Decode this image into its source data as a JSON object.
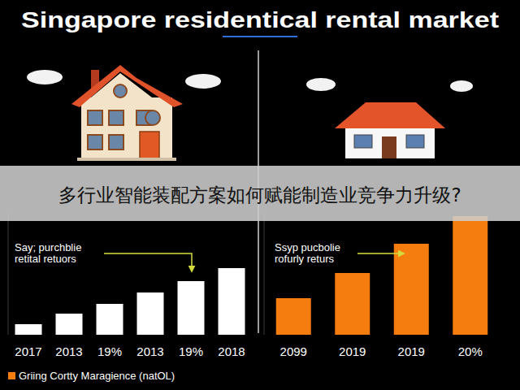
{
  "header": {
    "title": "Singapore residentical rental market"
  },
  "banner": {
    "text": "多行业智能装配方案如何赋能制造业竞争力升级?"
  },
  "chart_data": [
    {
      "type": "bar",
      "annotation": [
        "Say; purchblie",
        "retital retuors"
      ],
      "categories": [
        "2017",
        "2013",
        "19%",
        "2013",
        "19%",
        "2018"
      ],
      "values": [
        13,
        26,
        38,
        52,
        66,
        82
      ],
      "color": "#ffffff",
      "ylim": [
        0,
        150
      ],
      "grid": false,
      "tick_labels": "x"
    },
    {
      "type": "bar",
      "annotation": [
        "Ssyp pucbolie",
        "rofurly returs"
      ],
      "categories": [
        "2099",
        "2019",
        "2019",
        "20%"
      ],
      "series": [
        {
          "name": "Griing Cortty Maragience (natOL)",
          "color": "#f57c0e",
          "values": [
            45,
            76,
            112,
            146
          ]
        }
      ],
      "ylim": [
        0,
        150
      ],
      "grid": false,
      "legend": "lower left",
      "tick_labels": "x"
    }
  ]
}
